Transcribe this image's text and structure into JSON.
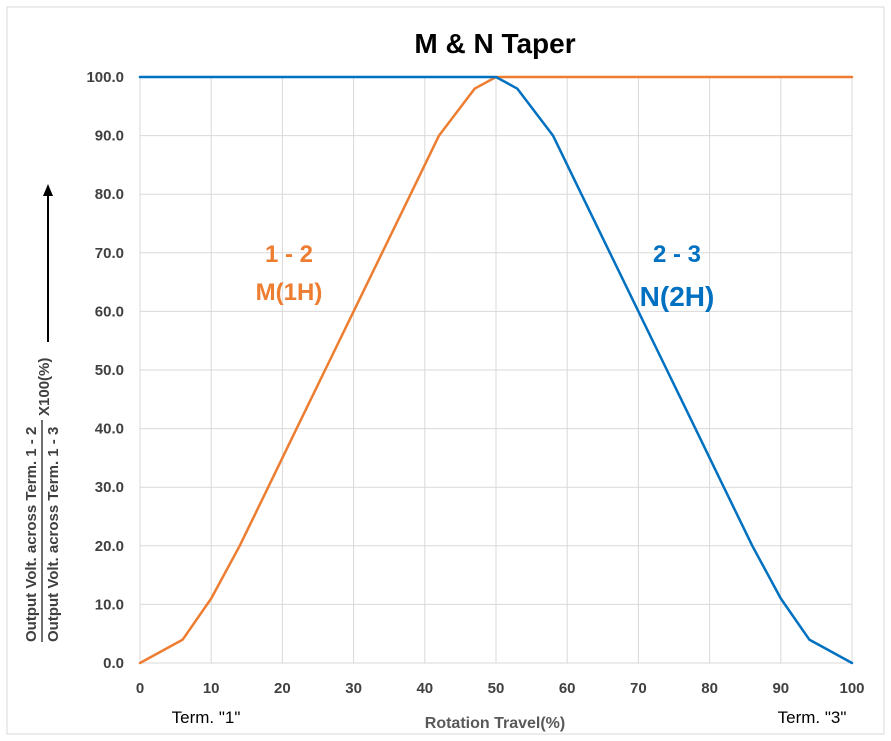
{
  "chart_data": {
    "type": "line",
    "title": "M & N Taper",
    "xlabel": "Rotation Travel(%)",
    "ylabel": {
      "numerator": "Output Volt. across Term. 1 - 2",
      "denominator": "Output Volt. across Term. 1 - 3",
      "suffix": "X100(%)"
    },
    "xlim": [
      0,
      100
    ],
    "ylim": [
      0,
      100
    ],
    "x_ticks": [
      "0",
      "10",
      "20",
      "30",
      "40",
      "50",
      "60",
      "70",
      "80",
      "90",
      "100"
    ],
    "y_ticks": [
      "0.0",
      "10.0",
      "20.0",
      "30.0",
      "40.0",
      "50.0",
      "60.0",
      "70.0",
      "80.0",
      "90.0",
      "100.0"
    ],
    "grid": true,
    "series": [
      {
        "color": "#ED7D31",
        "points": [
          [
            0,
            0
          ],
          [
            6,
            4
          ],
          [
            10,
            11
          ],
          [
            14,
            20
          ],
          [
            18,
            30
          ],
          [
            22,
            40
          ],
          [
            26,
            50
          ],
          [
            30,
            60
          ],
          [
            34,
            70
          ],
          [
            38,
            80
          ],
          [
            42,
            90
          ],
          [
            47,
            98
          ],
          [
            50,
            100
          ],
          [
            55,
            100
          ],
          [
            60,
            100
          ],
          [
            65,
            100
          ],
          [
            70,
            100
          ],
          [
            75,
            100
          ],
          [
            80,
            100
          ],
          [
            85,
            100
          ],
          [
            90,
            100
          ],
          [
            95,
            100
          ],
          [
            100,
            100
          ]
        ]
      },
      {
        "color": "#0070C0",
        "points": [
          [
            0,
            100
          ],
          [
            5,
            100
          ],
          [
            10,
            100
          ],
          [
            15,
            100
          ],
          [
            20,
            100
          ],
          [
            25,
            100
          ],
          [
            30,
            100
          ],
          [
            35,
            100
          ],
          [
            40,
            100
          ],
          [
            45,
            100
          ],
          [
            50,
            100
          ],
          [
            53,
            98
          ],
          [
            58,
            90
          ],
          [
            62,
            80
          ],
          [
            66,
            70
          ],
          [
            70,
            60
          ],
          [
            74,
            50
          ],
          [
            78,
            40
          ],
          [
            82,
            30
          ],
          [
            86,
            20
          ],
          [
            90,
            11
          ],
          [
            94,
            4
          ],
          [
            100,
            0
          ]
        ]
      }
    ],
    "annotations": [
      {
        "line1": "1 - 2",
        "line2": "M(1H)",
        "color": "#ED7D31"
      },
      {
        "line1": "2 - 3",
        "line2": "N(2H)",
        "color": "#0070C0"
      }
    ],
    "terminal_labels": {
      "left": "Term. \"1\"",
      "right": "Term. \"3\""
    }
  }
}
